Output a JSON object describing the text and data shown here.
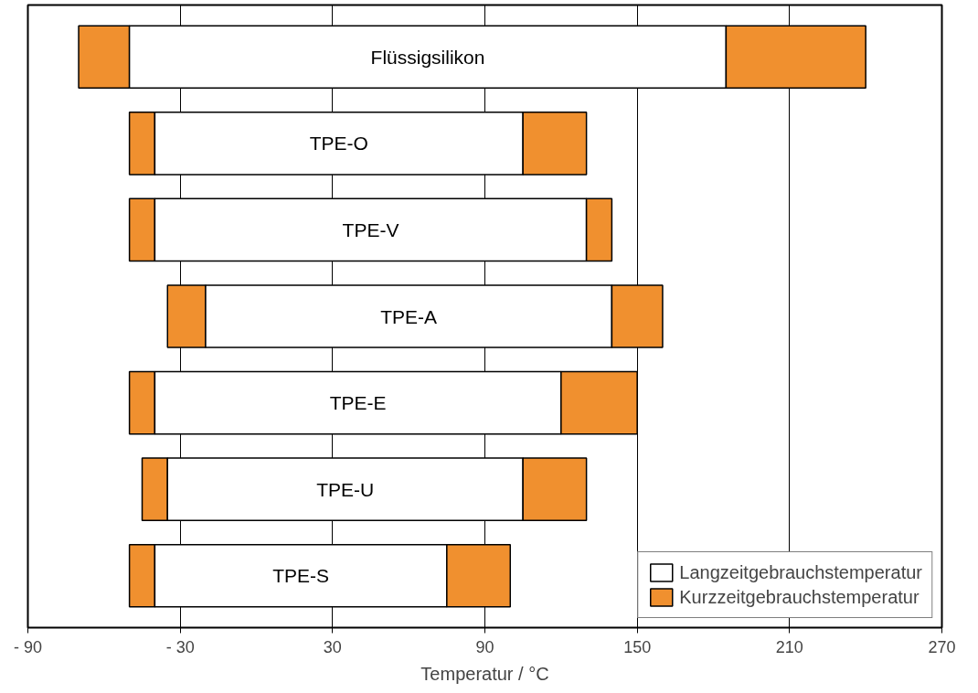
{
  "chart_data": {
    "type": "bar",
    "orientation": "horizontal",
    "categories": [
      "Flüssigsilikon",
      "TPE-O",
      "TPE-V",
      "TPE-A",
      "TPE-E",
      "TPE-U",
      "TPE-S"
    ],
    "series": [
      {
        "name": "Kurzzeitgebrauchstemperatur",
        "color": "#f0902f",
        "base": [
          -70,
          -50,
          -50,
          -35,
          -50,
          -45,
          -50
        ],
        "values": [
          20,
          10,
          10,
          15,
          10,
          10,
          10
        ]
      },
      {
        "name": "Langzeitgebrauchstemperatur",
        "color": "#ffffff",
        "base": [
          -50,
          -40,
          -40,
          -20,
          -40,
          -35,
          -40
        ],
        "values": [
          235,
          145,
          170,
          160,
          160,
          140,
          115
        ]
      },
      {
        "color": "#f0902f",
        "base": [
          185,
          105,
          130,
          140,
          120,
          105,
          75
        ],
        "values": [
          55,
          25,
          10,
          20,
          30,
          25,
          25
        ]
      }
    ],
    "xlabel": "Temperatur / °C",
    "xlim": [
      -90,
      270
    ],
    "xticks": [
      {
        "value": -90,
        "label": "- 90"
      },
      {
        "value": -30,
        "label": "- 30"
      },
      30,
      90,
      150,
      210,
      270
    ],
    "grid": "x",
    "legend": "bottom right",
    "tick_labels": "x"
  }
}
